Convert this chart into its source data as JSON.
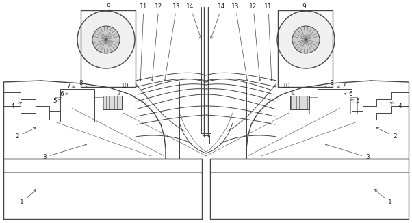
{
  "bg_color": "#ffffff",
  "line_color": "#444444",
  "label_color": "#222222",
  "figsize": [
    6.02,
    3.26
  ],
  "dpi": 100,
  "lw_main": 0.7,
  "lw_thick": 1.0,
  "lw_thin": 0.4
}
